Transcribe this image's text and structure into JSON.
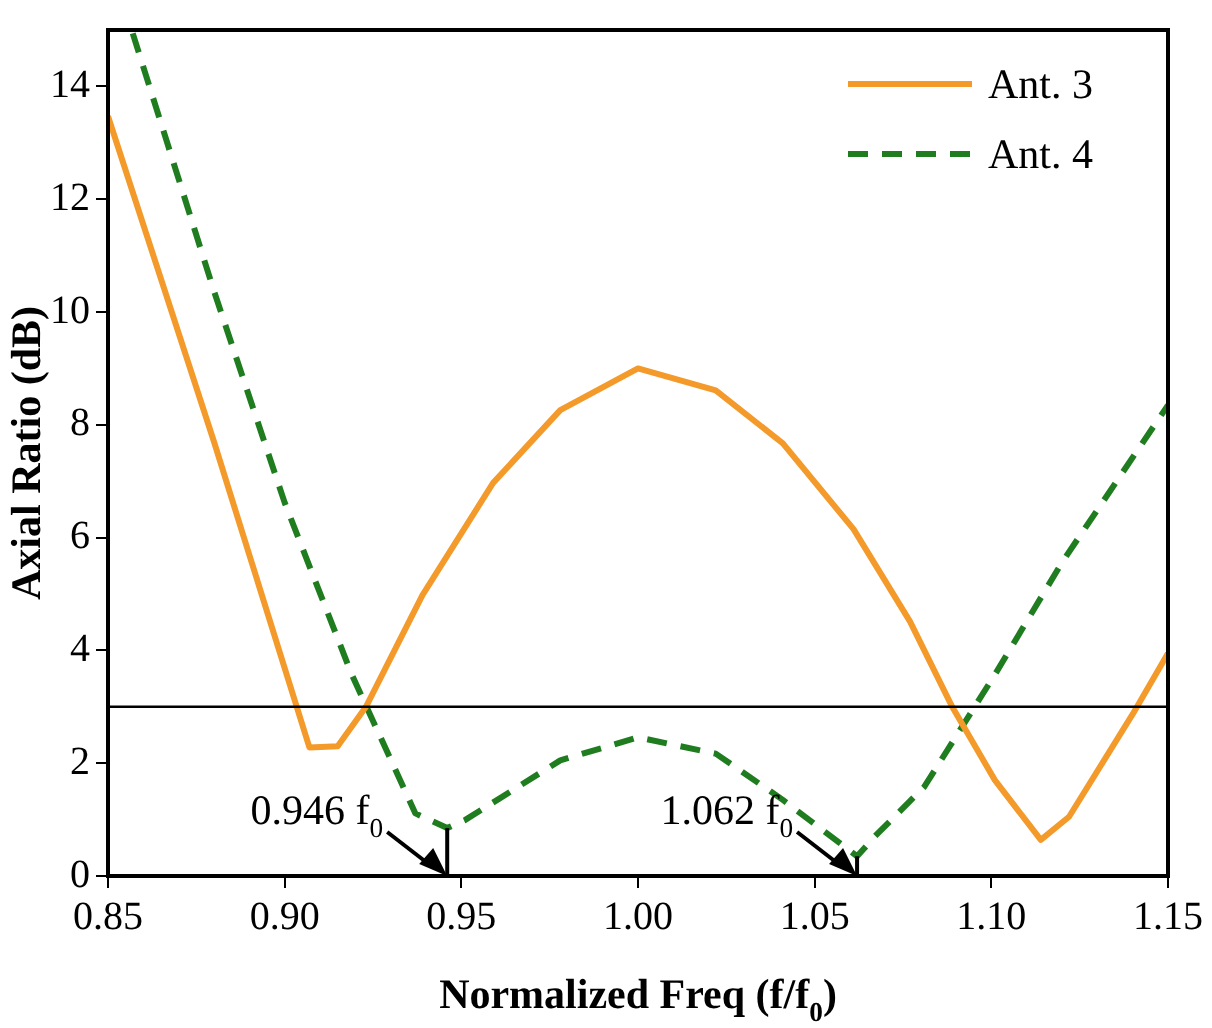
{
  "chart_data": {
    "type": "line",
    "xlabel": "Normalized Freq (f/f$_{0}$)",
    "ylabel": "Axial Ratio (dB)",
    "xlim": [
      0.85,
      1.15
    ],
    "xticks": [
      0.85,
      {
        "value": 0.9,
        "label": "0.90"
      },
      0.95,
      {
        "value": 1.0,
        "label": "1.00"
      },
      1.05,
      {
        "value": 1.1,
        "label": "1.10"
      },
      1.15
    ],
    "ylim": [
      0,
      15
    ],
    "yticks": [
      0,
      2,
      4,
      6,
      8,
      10,
      12,
      14
    ],
    "grid": false,
    "legend": "top right",
    "marker": "none",
    "series": [
      {
        "name": "Ant. 3",
        "color": "#f39a2b",
        "line_style": "solid",
        "x": [
          0.85,
          0.88,
          0.907,
          0.915,
          0.923,
          0.939,
          0.959,
          0.978,
          1.0,
          1.022,
          1.041,
          1.061,
          1.077,
          1.089,
          1.101,
          1.114,
          1.122,
          1.14,
          1.15
        ],
        "values": [
          13.47,
          7.7,
          2.28,
          2.3,
          3.0,
          4.98,
          6.97,
          8.26,
          9.0,
          8.61,
          7.67,
          6.15,
          4.51,
          2.99,
          1.7,
          0.64,
          1.05,
          2.87,
          3.95
        ]
      },
      {
        "name": "Ant. 4",
        "color": "#1f7d1f",
        "line_style": "dashed",
        "x": [
          0.857,
          0.88,
          0.9,
          0.919,
          0.937,
          0.946,
          0.951,
          0.978,
          1.0,
          1.022,
          1.041,
          1.062,
          1.067,
          1.081,
          1.101,
          1.12,
          1.15
        ],
        "values": [
          14.94,
          10.37,
          6.62,
          3.57,
          1.11,
          0.85,
          0.99,
          2.05,
          2.46,
          2.17,
          1.35,
          0.35,
          0.7,
          1.58,
          3.57,
          5.56,
          8.35
        ]
      }
    ],
    "ref_lines": [
      {
        "axis": "y",
        "value": 3,
        "color": "#000000"
      }
    ],
    "annotations": [
      {
        "text": "0.946 f$_{0}$",
        "x": 0.946,
        "y": 0.85
      },
      {
        "text": "1.062 f$_{0}$",
        "x": 1.062,
        "y": 0.35
      }
    ]
  }
}
